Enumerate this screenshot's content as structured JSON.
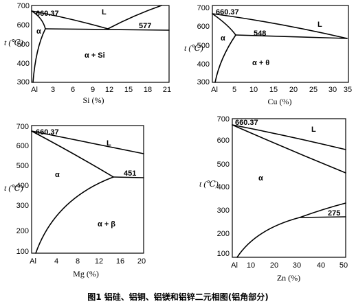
{
  "caption": "图1  铝硅、铝铜、铝镁和铝锌二元相图(铝角部分)",
  "panels": [
    {
      "id": "al-si",
      "y_axis_label": "t (℃)",
      "x_axis_label": "Si (%)",
      "y_ticks": [
        "700",
        "600",
        "500",
        "400",
        "300"
      ],
      "x_ticks": [
        "Al",
        "3",
        "6",
        "9",
        "12",
        "15",
        "18",
        "21"
      ],
      "annotations": {
        "melting": "660.37",
        "liquid": "L",
        "alpha": "α",
        "two_phase": "α + Si",
        "eutectic": "577"
      }
    },
    {
      "id": "al-cu",
      "y_axis_label": "t (℃)",
      "x_axis_label": "Cu (%)",
      "y_ticks": [
        "700",
        "600",
        "500",
        "400",
        "300"
      ],
      "x_ticks": [
        "Al",
        "5",
        "10",
        "15",
        "20",
        "25",
        "30",
        "35"
      ],
      "annotations": {
        "melting": "660.37",
        "liquid": "L",
        "alpha": "α",
        "two_phase": "α + θ",
        "eutectic": "548"
      }
    },
    {
      "id": "al-mg",
      "y_axis_label": "t (℃)",
      "x_axis_label": "Mg (%)",
      "y_ticks": [
        "700",
        "600",
        "500",
        "400",
        "300",
        "200",
        "100"
      ],
      "x_ticks": [
        "Al",
        "4",
        "8",
        "12",
        "16",
        "20"
      ],
      "annotations": {
        "melting": "660.37",
        "liquid": "L",
        "alpha": "α",
        "two_phase": "α + β",
        "eutectic": "451"
      }
    },
    {
      "id": "al-zn",
      "y_axis_label": "t (℃)",
      "x_axis_label": "Zn (%)",
      "y_ticks": [
        "700",
        "600",
        "500",
        "400",
        "300",
        "200",
        "100"
      ],
      "x_ticks": [
        "Al",
        "10",
        "20",
        "30",
        "40",
        "50"
      ],
      "annotations": {
        "melting": "660.37",
        "liquid": "L",
        "alpha": "α",
        "eutectoid": "275"
      }
    }
  ]
}
